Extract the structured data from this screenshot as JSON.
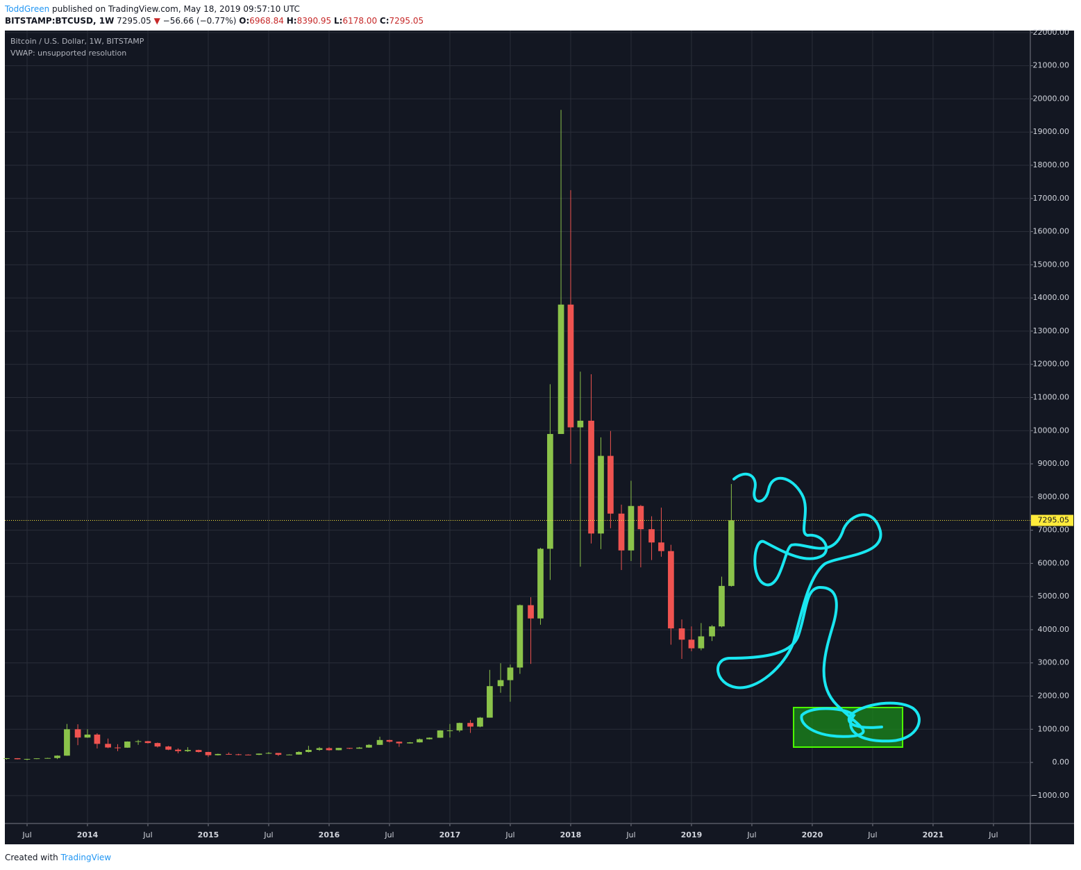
{
  "header": {
    "author": "ToddGreen",
    "published": "published on TradingView.com, May 18, 2019 09:57:10 UTC",
    "symbol": "BITSTAMP:BTCUSD, 1W",
    "price": "7295.05",
    "arrow": "▼",
    "change": "−56.66 (−0.77%)",
    "o_label": "O:",
    "open": "6968.84",
    "h_label": "H:",
    "high": "8390.95",
    "l_label": "L:",
    "low": "6178.00",
    "c_label": "C:",
    "close": "7295.05"
  },
  "chart_data": {
    "type": "candlestick",
    "title": "Bitcoin / U.S. Dollar, 1W, BITSTAMP",
    "subtitle": "VWAP: unsupported resolution",
    "up_color": "#8bc34a",
    "down_color": "#ef5350",
    "grid": true,
    "xlim": [
      2013.316,
      2021.805
    ],
    "xticks": [
      {
        "value": 2013.5,
        "label": "Jul"
      },
      {
        "value": 2014,
        "label": "2014"
      },
      {
        "value": 2014.5,
        "label": "Jul"
      },
      {
        "value": 2015,
        "label": "2015"
      },
      {
        "value": 2015.5,
        "label": "Jul"
      },
      {
        "value": 2016,
        "label": "2016"
      },
      {
        "value": 2016.5,
        "label": "Jul"
      },
      {
        "value": 2017,
        "label": "2017"
      },
      {
        "value": 2017.5,
        "label": "Jul"
      },
      {
        "value": 2018,
        "label": "2018"
      },
      {
        "value": 2018.5,
        "label": "Jul"
      },
      {
        "value": 2019,
        "label": "2019"
      },
      {
        "value": 2019.5,
        "label": "Jul"
      },
      {
        "value": 2020,
        "label": "2020"
      },
      {
        "value": 2020.5,
        "label": "Jul"
      },
      {
        "value": 2021,
        "label": "2021"
      },
      {
        "value": 2021.5,
        "label": "Jul"
      }
    ],
    "ylim": [
      -1840,
      22060
    ],
    "yticks": [
      {
        "value": -1000,
        "label": "−1000.00"
      },
      {
        "value": 0,
        "label": "0.00"
      },
      {
        "value": 1000,
        "label": "1000.00"
      },
      {
        "value": 2000,
        "label": "2000.00"
      },
      {
        "value": 3000,
        "label": "3000.00"
      },
      {
        "value": 4000,
        "label": "4000.00"
      },
      {
        "value": 5000,
        "label": "5000.00"
      },
      {
        "value": 6000,
        "label": "6000.00"
      },
      {
        "value": 7000,
        "label": "7000.00"
      },
      {
        "value": 8000,
        "label": "8000.00"
      },
      {
        "value": 9000,
        "label": "9000.00"
      },
      {
        "value": 10000,
        "label": "10000.00"
      },
      {
        "value": 11000,
        "label": "11000.00"
      },
      {
        "value": 12000,
        "label": "12000.00"
      },
      {
        "value": 13000,
        "label": "13000.00"
      },
      {
        "value": 14000,
        "label": "14000.00"
      },
      {
        "value": 15000,
        "label": "15000.00"
      },
      {
        "value": 16000,
        "label": "16000.00"
      },
      {
        "value": 17000,
        "label": "17000.00"
      },
      {
        "value": 18000,
        "label": "18000.00"
      },
      {
        "value": 19000,
        "label": "19000.00"
      },
      {
        "value": 20000,
        "label": "20000.00"
      },
      {
        "value": 21000,
        "label": "21000.00"
      },
      {
        "value": 22000,
        "label": "22000.00"
      }
    ],
    "last_price": 7295.05,
    "last_price_color": "#ffeb3b",
    "candles": [
      {
        "t": 2013.33,
        "o": 118,
        "h": 130,
        "l": 85,
        "c": 128
      },
      {
        "t": 2013.42,
        "o": 128,
        "h": 130,
        "l": 90,
        "c": 97
      },
      {
        "t": 2013.5,
        "o": 97,
        "h": 110,
        "l": 65,
        "c": 106
      },
      {
        "t": 2013.58,
        "o": 106,
        "h": 125,
        "l": 100,
        "c": 124
      },
      {
        "t": 2013.67,
        "o": 124,
        "h": 140,
        "l": 115,
        "c": 133
      },
      {
        "t": 2013.75,
        "o": 133,
        "h": 215,
        "l": 100,
        "c": 204
      },
      {
        "t": 2013.83,
        "o": 204,
        "h": 1160,
        "l": 200,
        "c": 1000
      },
      {
        "t": 2013.92,
        "o": 1000,
        "h": 1150,
        "l": 520,
        "c": 750
      },
      {
        "t": 2014.0,
        "o": 750,
        "h": 1000,
        "l": 740,
        "c": 840
      },
      {
        "t": 2014.08,
        "o": 840,
        "h": 880,
        "l": 420,
        "c": 560
      },
      {
        "t": 2014.17,
        "o": 560,
        "h": 720,
        "l": 430,
        "c": 450
      },
      {
        "t": 2014.25,
        "o": 450,
        "h": 550,
        "l": 340,
        "c": 445
      },
      {
        "t": 2014.33,
        "o": 445,
        "h": 635,
        "l": 440,
        "c": 630
      },
      {
        "t": 2014.42,
        "o": 630,
        "h": 680,
        "l": 530,
        "c": 640
      },
      {
        "t": 2014.5,
        "o": 640,
        "h": 650,
        "l": 570,
        "c": 585
      },
      {
        "t": 2014.58,
        "o": 585,
        "h": 600,
        "l": 450,
        "c": 480
      },
      {
        "t": 2014.67,
        "o": 480,
        "h": 500,
        "l": 370,
        "c": 385
      },
      {
        "t": 2014.75,
        "o": 385,
        "h": 425,
        "l": 275,
        "c": 340
      },
      {
        "t": 2014.83,
        "o": 340,
        "h": 460,
        "l": 315,
        "c": 375
      },
      {
        "t": 2014.92,
        "o": 375,
        "h": 385,
        "l": 300,
        "c": 315
      },
      {
        "t": 2015.0,
        "o": 315,
        "h": 320,
        "l": 165,
        "c": 218
      },
      {
        "t": 2015.08,
        "o": 218,
        "h": 265,
        "l": 210,
        "c": 255
      },
      {
        "t": 2015.17,
        "o": 255,
        "h": 300,
        "l": 240,
        "c": 245
      },
      {
        "t": 2015.25,
        "o": 245,
        "h": 260,
        "l": 215,
        "c": 235
      },
      {
        "t": 2015.33,
        "o": 235,
        "h": 245,
        "l": 225,
        "c": 230
      },
      {
        "t": 2015.42,
        "o": 230,
        "h": 270,
        "l": 220,
        "c": 265
      },
      {
        "t": 2015.5,
        "o": 265,
        "h": 315,
        "l": 255,
        "c": 285
      },
      {
        "t": 2015.58,
        "o": 285,
        "h": 285,
        "l": 195,
        "c": 230
      },
      {
        "t": 2015.67,
        "o": 230,
        "h": 245,
        "l": 225,
        "c": 237
      },
      {
        "t": 2015.75,
        "o": 237,
        "h": 335,
        "l": 235,
        "c": 315
      },
      {
        "t": 2015.83,
        "o": 315,
        "h": 500,
        "l": 300,
        "c": 378
      },
      {
        "t": 2015.92,
        "o": 378,
        "h": 465,
        "l": 350,
        "c": 430
      },
      {
        "t": 2016.0,
        "o": 430,
        "h": 460,
        "l": 355,
        "c": 370
      },
      {
        "t": 2016.08,
        "o": 370,
        "h": 440,
        "l": 365,
        "c": 437
      },
      {
        "t": 2016.17,
        "o": 437,
        "h": 440,
        "l": 405,
        "c": 415
      },
      {
        "t": 2016.25,
        "o": 415,
        "h": 465,
        "l": 415,
        "c": 448
      },
      {
        "t": 2016.33,
        "o": 448,
        "h": 550,
        "l": 440,
        "c": 530
      },
      {
        "t": 2016.42,
        "o": 530,
        "h": 775,
        "l": 525,
        "c": 675
      },
      {
        "t": 2016.5,
        "o": 675,
        "h": 685,
        "l": 600,
        "c": 625
      },
      {
        "t": 2016.58,
        "o": 625,
        "h": 630,
        "l": 470,
        "c": 575
      },
      {
        "t": 2016.67,
        "o": 575,
        "h": 615,
        "l": 570,
        "c": 605
      },
      {
        "t": 2016.75,
        "o": 605,
        "h": 720,
        "l": 600,
        "c": 700
      },
      {
        "t": 2016.83,
        "o": 700,
        "h": 755,
        "l": 690,
        "c": 745
      },
      {
        "t": 2016.92,
        "o": 745,
        "h": 970,
        "l": 740,
        "c": 965
      },
      {
        "t": 2017.0,
        "o": 965,
        "h": 1160,
        "l": 750,
        "c": 965
      },
      {
        "t": 2017.08,
        "o": 965,
        "h": 1200,
        "l": 915,
        "c": 1190
      },
      {
        "t": 2017.17,
        "o": 1190,
        "h": 1280,
        "l": 890,
        "c": 1080
      },
      {
        "t": 2017.25,
        "o": 1080,
        "h": 1370,
        "l": 1060,
        "c": 1350
      },
      {
        "t": 2017.33,
        "o": 1350,
        "h": 2790,
        "l": 1350,
        "c": 2300
      },
      {
        "t": 2017.42,
        "o": 2300,
        "h": 2990,
        "l": 2100,
        "c": 2480
      },
      {
        "t": 2017.5,
        "o": 2480,
        "h": 2950,
        "l": 1830,
        "c": 2860
      },
      {
        "t": 2017.58,
        "o": 2860,
        "h": 4760,
        "l": 2670,
        "c": 4740
      },
      {
        "t": 2017.67,
        "o": 4740,
        "h": 4980,
        "l": 2970,
        "c": 4340
      },
      {
        "t": 2017.75,
        "o": 4340,
        "h": 6470,
        "l": 4150,
        "c": 6440
      },
      {
        "t": 2017.83,
        "o": 6440,
        "h": 11400,
        "l": 5500,
        "c": 9900
      },
      {
        "t": 2017.92,
        "o": 9900,
        "h": 19670,
        "l": 9900,
        "c": 13800
      },
      {
        "t": 2018.0,
        "o": 13800,
        "h": 17250,
        "l": 9000,
        "c": 10100
      },
      {
        "t": 2018.08,
        "o": 10100,
        "h": 11780,
        "l": 5900,
        "c": 10300
      },
      {
        "t": 2018.17,
        "o": 10300,
        "h": 11700,
        "l": 6600,
        "c": 6900
      },
      {
        "t": 2018.25,
        "o": 6900,
        "h": 9800,
        "l": 6430,
        "c": 9240
      },
      {
        "t": 2018.33,
        "o": 9240,
        "h": 9990,
        "l": 7060,
        "c": 7500
      },
      {
        "t": 2018.42,
        "o": 7500,
        "h": 7770,
        "l": 5800,
        "c": 6390
      },
      {
        "t": 2018.5,
        "o": 6390,
        "h": 8490,
        "l": 6070,
        "c": 7730
      },
      {
        "t": 2018.58,
        "o": 7730,
        "h": 7760,
        "l": 5880,
        "c": 7030
      },
      {
        "t": 2018.67,
        "o": 7030,
        "h": 7420,
        "l": 6100,
        "c": 6630
      },
      {
        "t": 2018.75,
        "o": 6630,
        "h": 7680,
        "l": 6200,
        "c": 6370
      },
      {
        "t": 2018.83,
        "o": 6370,
        "h": 6560,
        "l": 3550,
        "c": 4040
      },
      {
        "t": 2018.92,
        "o": 4040,
        "h": 4310,
        "l": 3120,
        "c": 3700
      },
      {
        "t": 2019.0,
        "o": 3700,
        "h": 4100,
        "l": 3350,
        "c": 3440
      },
      {
        "t": 2019.08,
        "o": 3440,
        "h": 4200,
        "l": 3380,
        "c": 3800
      },
      {
        "t": 2019.17,
        "o": 3800,
        "h": 4140,
        "l": 3660,
        "c": 4100
      },
      {
        "t": 2019.25,
        "o": 4100,
        "h": 5600,
        "l": 4070,
        "c": 5320
      },
      {
        "t": 2019.33,
        "o": 5320,
        "h": 8390,
        "l": 5300,
        "c": 7295
      }
    ]
  },
  "footer": {
    "created": "Created with",
    "brand": "TradingView"
  }
}
